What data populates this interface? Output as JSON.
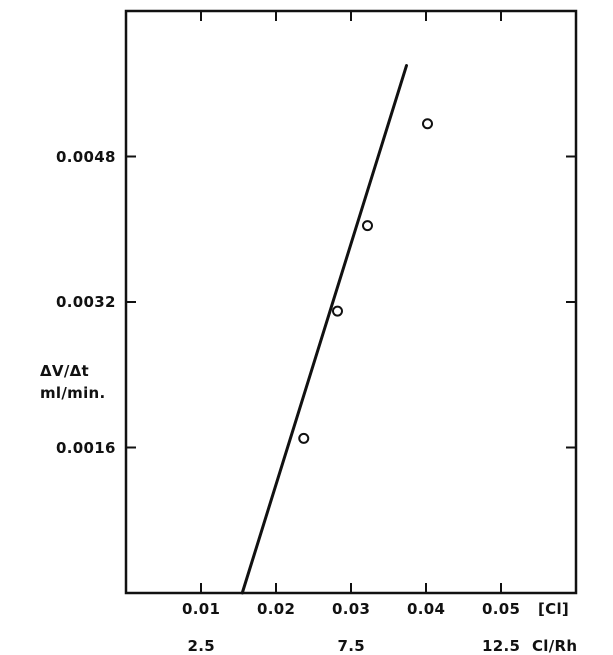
{
  "chart_data": {
    "type": "scatter",
    "title": "",
    "ylabel": [
      "ΔV/Δt",
      "ml/min."
    ],
    "xlabel": "[Cl]",
    "xlabel2": "Cl/Rh",
    "xlim": [
      0,
      0.06
    ],
    "ylim": [
      0,
      0.0064
    ],
    "grid": false,
    "legend": "none",
    "x_ticks": [
      {
        "value": 0.01,
        "label": "0.01"
      },
      {
        "value": 0.02,
        "label": "0.02"
      },
      {
        "value": 0.03,
        "label": "0.03"
      },
      {
        "value": 0.04,
        "label": "0.04"
      },
      {
        "value": 0.05,
        "label": "0.05"
      }
    ],
    "x2_ticks": [
      {
        "value": 2.5,
        "label": "2.5"
      },
      {
        "value": 7.5,
        "label": "7.5"
      },
      {
        "value": 12.5,
        "label": "12.5"
      }
    ],
    "y_ticks": [
      {
        "value": 0.0016,
        "label": "0.0016"
      },
      {
        "value": 0.0032,
        "label": "0.0032"
      },
      {
        "value": 0.0048,
        "label": "0.0048"
      }
    ],
    "points": [
      {
        "x": 0.0237,
        "y": 0.0017
      },
      {
        "x": 0.0282,
        "y": 0.0031
      },
      {
        "x": 0.0322,
        "y": 0.00404
      },
      {
        "x": 0.0402,
        "y": 0.00516
      }
    ],
    "fit_line": {
      "x1": 0.0155,
      "y1": 0.0,
      "x2": 0.0374,
      "y2": 0.0058
    }
  },
  "colors": {
    "ink": "#111111",
    "background": "#ffffff"
  }
}
